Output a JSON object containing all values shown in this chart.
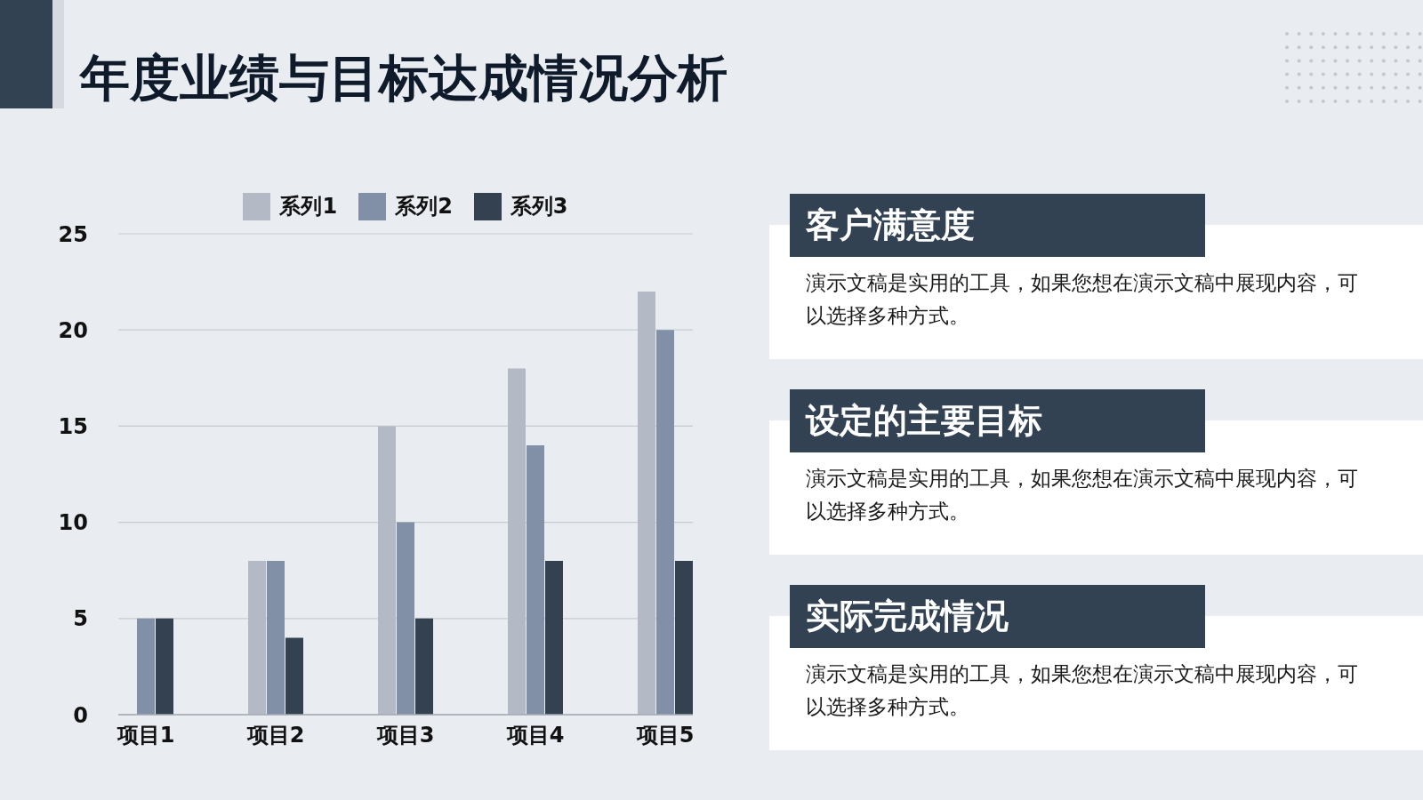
{
  "chart_data": [
    {
      "type": "bar",
      "title": "年度业绩与目标达成情况分析",
      "categories": [
        "项目1",
        "项目2",
        "项目3",
        "项目4",
        "项目5"
      ],
      "series": [
        {
          "name": "系列1",
          "color": "#b3bac6",
          "values": [
            null,
            8,
            15,
            18,
            22
          ]
        },
        {
          "name": "系列2",
          "color": "#8190a7",
          "values": [
            5,
            8,
            10,
            14,
            20
          ]
        },
        {
          "name": "系列3",
          "color": "#334150",
          "values": [
            5,
            4,
            5,
            8,
            8
          ]
        }
      ],
      "ylim": [
        0,
        25
      ],
      "yticks": [
        0,
        5,
        10,
        15,
        20,
        25
      ],
      "grid": "y",
      "legend": "top"
    },
    {
      "type": "other",
      "title": "客户满意度",
      "annotations": [
        "演示文稿是实用的工具，如果您想在演示文稿中展现内容，可以选择多种方式。"
      ]
    },
    {
      "type": "other",
      "title": "设定的主要目标",
      "annotations": [
        "演示文稿是实用的工具，如果您想在演示文稿中展现内容，可以选择多种方式。"
      ]
    },
    {
      "type": "other",
      "title": "实际完成情况",
      "annotations": [
        "演示文稿是实用的工具，如果您想在演示文稿中展现内容，可以选择多种方式。"
      ]
    }
  ]
}
